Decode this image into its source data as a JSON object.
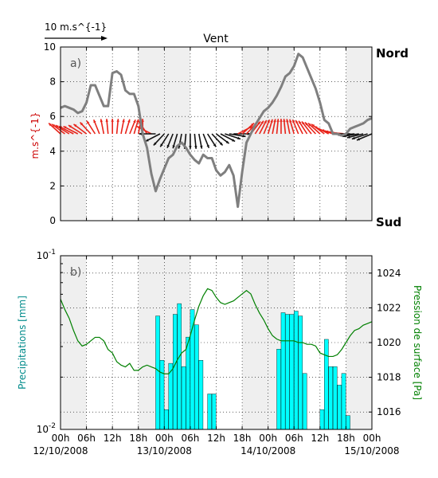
{
  "chart_data": [
    {
      "type": "line",
      "panel_label": "a)",
      "title": "Vent",
      "ylabel": "m.s^{-1}",
      "ylim": [
        0,
        10
      ],
      "yticks": [
        0,
        2,
        4,
        6,
        8,
        10
      ],
      "xlim_hours": [
        0,
        72
      ],
      "right_labels": {
        "top": "Nord",
        "bottom": "Sud"
      },
      "scale_arrow_label": "10 m.s^{-1}",
      "grid": true,
      "series": [
        {
          "color": "#808080",
          "x_hours": [
            0,
            1,
            2,
            3,
            4,
            5,
            6,
            7,
            8,
            9,
            10,
            11,
            12,
            13,
            14,
            15,
            16,
            17,
            18,
            19,
            20,
            21,
            22,
            23,
            24,
            25,
            26,
            27,
            28,
            29,
            30,
            31,
            32,
            33,
            34,
            35,
            36,
            37,
            38,
            39,
            40,
            41,
            42,
            43,
            44,
            45,
            46,
            47,
            48,
            49,
            50,
            51,
            52,
            53,
            54,
            55,
            56,
            57,
            58,
            59,
            60,
            61,
            62,
            63,
            64,
            65,
            66,
            67,
            68,
            69,
            70,
            71,
            72
          ],
          "values": [
            6.5,
            6.6,
            6.5,
            6.4,
            6.2,
            6.3,
            6.8,
            7.8,
            7.8,
            7.2,
            6.6,
            6.6,
            8.5,
            8.6,
            8.4,
            7.5,
            7.3,
            7.3,
            6.6,
            5.0,
            4.2,
            2.7,
            1.7,
            2.4,
            3.0,
            3.6,
            3.8,
            4.3,
            4.5,
            4.2,
            3.8,
            3.5,
            3.3,
            3.8,
            3.6,
            3.6,
            2.9,
            2.6,
            2.8,
            3.2,
            2.6,
            0.8,
            2.8,
            4.5,
            5.0,
            5.5,
            5.9,
            6.3,
            6.5,
            6.8,
            7.2,
            7.7,
            8.3,
            8.5,
            8.9,
            9.6,
            9.4,
            8.8,
            8.2,
            7.6,
            6.8,
            5.8,
            5.6,
            5.0,
            5.0,
            4.9,
            5.0,
            5.3,
            5.4,
            5.5,
            5.6,
            5.8,
            5.9
          ]
        }
      ],
      "direction_arrows_deg_from_north": [
        315,
        310,
        305,
        300,
        300,
        305,
        310,
        320,
        330,
        340,
        350,
        355,
        0,
        5,
        10,
        15,
        20,
        15,
        10,
        0,
        330,
        300,
        270,
        240,
        220,
        210,
        200,
        195,
        190,
        185,
        180,
        175,
        170,
        160,
        150,
        140,
        130,
        120,
        110,
        100,
        90,
        60,
        45,
        40,
        35,
        30,
        25,
        20,
        15,
        10,
        5,
        0,
        355,
        350,
        345,
        340,
        335,
        330,
        325,
        320,
        315,
        310,
        300,
        290,
        285,
        280,
        275,
        270,
        265,
        260,
        255,
        250,
        245
      ]
    },
    {
      "type": "bar+line",
      "panel_label": "b)",
      "ylabel": "Precipitations [mm]",
      "ylabel_right": "Pression de surface [Pa]",
      "yscale": "log",
      "ylim": [
        0.01,
        0.1
      ],
      "ytick_labels": [
        "10^-2",
        "10^-1"
      ],
      "y2lim": [
        1015,
        1025
      ],
      "y2ticks": [
        1016,
        1018,
        1020,
        1022,
        1024
      ],
      "xlim_hours": [
        0,
        72
      ],
      "xtick_labels": [
        "00h",
        "06h",
        "12h",
        "18h",
        "00h",
        "06h",
        "12h",
        "18h",
        "00h",
        "06h",
        "12h",
        "18h",
        "00h"
      ],
      "date_labels": [
        "12/10/2008",
        "13/10/2008",
        "14/10/2008",
        "15/10/2008"
      ],
      "grid": true,
      "bars": {
        "color": "#00ffff",
        "x_hours": [
          22,
          23,
          24,
          25,
          26,
          27,
          28,
          29,
          30,
          31,
          32,
          34,
          35,
          50,
          51,
          52,
          53,
          54,
          55,
          56,
          57,
          58,
          60,
          61,
          62,
          63,
          64,
          65,
          66
        ],
        "values": [
          0.045,
          0.025,
          0.013,
          0.024,
          0.046,
          0.053,
          0.023,
          0.034,
          0.049,
          0.04,
          0.025,
          0.016,
          0.016,
          0.029,
          0.047,
          0.046,
          0.046,
          0.048,
          0.045,
          0.021,
          0.01,
          0.01,
          0.013,
          0.033,
          0.023,
          0.023,
          0.018,
          0.021,
          0.012
        ]
      },
      "line": {
        "color": "#008000",
        "x_hours": [
          0,
          1,
          2,
          3,
          4,
          5,
          6,
          7,
          8,
          9,
          10,
          11,
          12,
          13,
          14,
          15,
          16,
          17,
          18,
          19,
          20,
          21,
          22,
          23,
          24,
          25,
          26,
          27,
          28,
          29,
          30,
          31,
          32,
          33,
          34,
          35,
          36,
          37,
          38,
          39,
          40,
          41,
          42,
          43,
          44,
          45,
          46,
          47,
          48,
          49,
          50,
          51,
          52,
          53,
          54,
          55,
          56,
          57,
          58,
          59,
          60,
          61,
          62,
          63,
          64,
          65,
          66,
          67,
          68,
          69,
          70,
          71,
          72
        ],
        "values": [
          1022.5,
          1021.9,
          1021.4,
          1020.7,
          1020.1,
          1019.8,
          1019.9,
          1020.1,
          1020.3,
          1020.3,
          1020.1,
          1019.6,
          1019.4,
          1018.9,
          1018.7,
          1018.6,
          1018.8,
          1018.4,
          1018.4,
          1018.6,
          1018.7,
          1018.6,
          1018.5,
          1018.3,
          1018.2,
          1018.2,
          1018.5,
          1019.0,
          1019.4,
          1019.6,
          1020.4,
          1021.3,
          1022.1,
          1022.7,
          1023.1,
          1023.0,
          1022.6,
          1022.3,
          1022.2,
          1022.3,
          1022.4,
          1022.6,
          1022.8,
          1023.0,
          1022.8,
          1022.2,
          1021.7,
          1021.3,
          1020.8,
          1020.4,
          1020.2,
          1020.1,
          1020.1,
          1020.1,
          1020.1,
          1020.0,
          1020.0,
          1019.9,
          1019.9,
          1019.8,
          1019.4,
          1019.3,
          1019.2,
          1019.2,
          1019.3,
          1019.6,
          1020.0,
          1020.4,
          1020.7,
          1020.8,
          1021.0,
          1021.1,
          1021.2
        ]
      }
    }
  ]
}
